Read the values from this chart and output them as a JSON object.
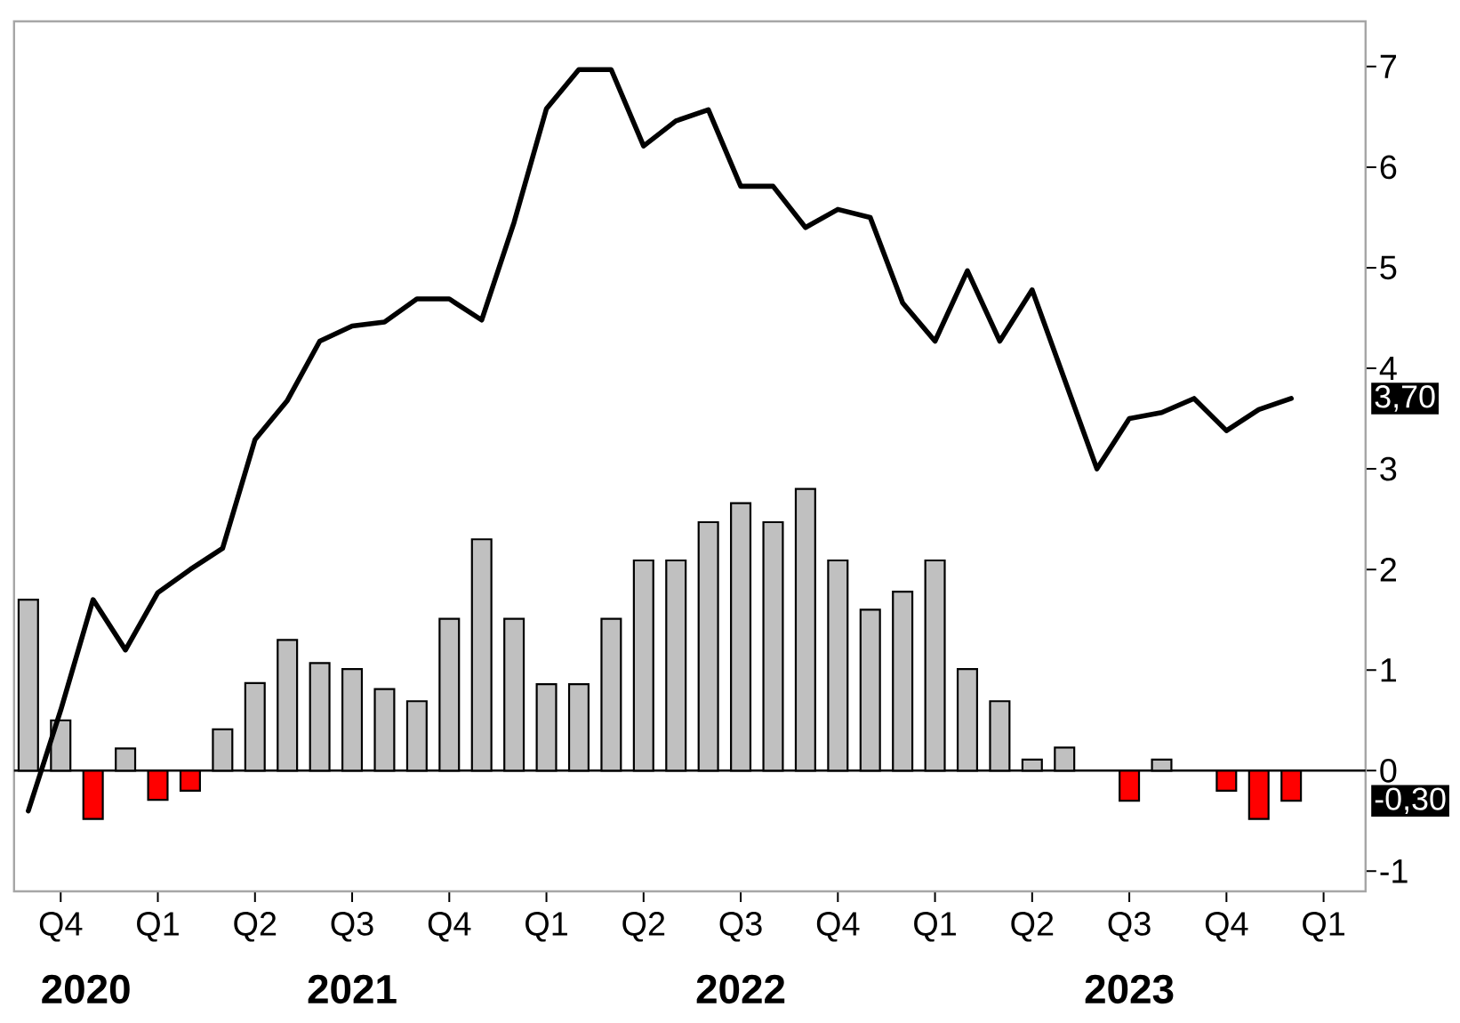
{
  "chart_data": {
    "type": "bar",
    "x": [
      "2020-09",
      "2020-10",
      "2020-11",
      "2020-12",
      "2021-01",
      "2021-02",
      "2021-03",
      "2021-04",
      "2021-05",
      "2021-06",
      "2021-07",
      "2021-08",
      "2021-09",
      "2021-10",
      "2021-11",
      "2021-12",
      "2022-01",
      "2022-02",
      "2022-03",
      "2022-04",
      "2022-05",
      "2022-06",
      "2022-07",
      "2022-08",
      "2022-09",
      "2022-10",
      "2022-11",
      "2022-12",
      "2023-01",
      "2023-02",
      "2023-03",
      "2023-04",
      "2023-05",
      "2023-06",
      "2023-07",
      "2023-08",
      "2023-09",
      "2023-10",
      "2023-11",
      "2023-12"
    ],
    "series": [
      {
        "values": [
          1.7,
          0.5,
          -0.48,
          0.22,
          -0.29,
          -0.2,
          0.41,
          0.87,
          1.3,
          1.07,
          1.01,
          0.81,
          0.69,
          1.51,
          2.3,
          1.51,
          0.86,
          0.86,
          1.51,
          2.09,
          2.09,
          2.47,
          2.66,
          2.47,
          2.8,
          2.09,
          1.6,
          1.78,
          2.09,
          1.01,
          0.69,
          0.11,
          0.23,
          null,
          -0.3,
          0.11,
          null,
          -0.2,
          -0.48,
          -0.3
        ],
        "colors": [
          "#c0c0c0",
          "#c0c0c0",
          "#ff0000",
          "#c0c0c0",
          "#ff0000",
          "#ff0000",
          "#c0c0c0",
          "#c0c0c0",
          "#c0c0c0",
          "#c0c0c0",
          "#c0c0c0",
          "#c0c0c0",
          "#c0c0c0",
          "#c0c0c0",
          "#c0c0c0",
          "#c0c0c0",
          "#c0c0c0",
          "#c0c0c0",
          "#c0c0c0",
          "#c0c0c0",
          "#c0c0c0",
          "#c0c0c0",
          "#c0c0c0",
          "#c0c0c0",
          "#c0c0c0",
          "#c0c0c0",
          "#c0c0c0",
          "#c0c0c0",
          "#c0c0c0",
          "#c0c0c0",
          "#c0c0c0",
          "#c0c0c0",
          "#c0c0c0",
          "#c0c0c0",
          "#ff0000",
          "#c0c0c0",
          "#c0c0c0",
          "#ff0000",
          "#ff0000",
          "#ff0000"
        ]
      },
      {
        "type": "line",
        "color": "#000000",
        "values": [
          -0.4,
          0.6,
          1.7,
          1.2,
          1.77,
          2.0,
          2.21,
          3.29,
          3.68,
          4.27,
          4.42,
          4.46,
          4.69,
          4.69,
          4.48,
          5.45,
          6.58,
          6.97,
          6.97,
          6.21,
          6.46,
          6.57,
          5.81,
          5.81,
          5.4,
          5.58,
          5.5,
          4.65,
          4.27,
          4.97,
          4.27,
          4.78,
          3.89,
          3.0,
          3.5,
          3.56,
          3.7,
          3.38,
          3.59,
          3.7
        ]
      }
    ],
    "xlim": [
      "2020-08-18",
      "2024-02-10"
    ],
    "xticks": [
      {
        "value": "2020-10",
        "label": "Q4"
      },
      {
        "value": "2021-01",
        "label": "Q1"
      },
      {
        "value": "2021-04",
        "label": "Q2"
      },
      {
        "value": "2021-07",
        "label": "Q3"
      },
      {
        "value": "2021-10",
        "label": "Q4"
      },
      {
        "value": "2022-01",
        "label": "Q1"
      },
      {
        "value": "2022-04",
        "label": "Q2"
      },
      {
        "value": "2022-07",
        "label": "Q3"
      },
      {
        "value": "2022-10",
        "label": "Q4"
      },
      {
        "value": "2023-01",
        "label": "Q1"
      },
      {
        "value": "2023-04",
        "label": "Q2"
      },
      {
        "value": "2023-07",
        "label": "Q3"
      },
      {
        "value": "2023-10",
        "label": "Q4"
      },
      {
        "value": "2024-01",
        "label": "Q1"
      }
    ],
    "ylim": [
      -1.2,
      7.45
    ],
    "yticks": [
      -1,
      0,
      1,
      2,
      3,
      4,
      5,
      6,
      7
    ],
    "ref_lines": [
      {
        "axis": "y",
        "value": 0,
        "color": "#000000"
      }
    ],
    "annotations": [
      "2020",
      "2021",
      "2022",
      "2023",
      {
        "text": "3,70",
        "y": 3.7
      },
      {
        "text": "-0,30",
        "y": -0.3
      }
    ]
  }
}
